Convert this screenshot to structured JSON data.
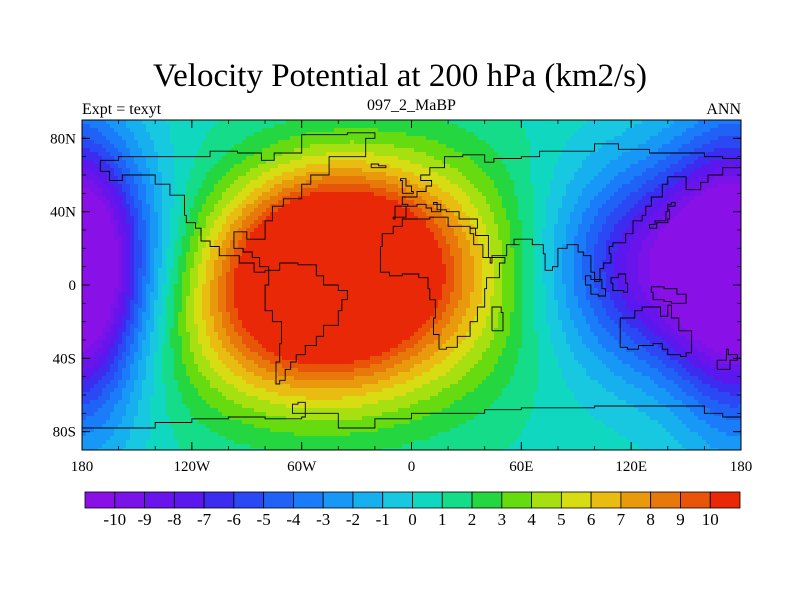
{
  "title": "Velocity Potential at 200 hPa (km2/s)",
  "subtitle_left": "Expt = texyt",
  "subtitle_center": "097_2_MaBP",
  "subtitle_right": "ANN",
  "chart_data": {
    "type": "heatmap",
    "title": "Velocity Potential at 200 hPa (km2/s)",
    "x_ticks": [
      "180",
      "120W",
      "60W",
      "0",
      "60E",
      "120E",
      "180"
    ],
    "x_tick_values": [
      -180,
      -120,
      -60,
      0,
      60,
      120,
      180
    ],
    "y_ticks": [
      "80N",
      "40N",
      "0",
      "40S",
      "80S"
    ],
    "y_tick_values": [
      80,
      40,
      0,
      -40,
      -80
    ],
    "xlim": [
      -180,
      180
    ],
    "ylim": [
      -90,
      90
    ],
    "colorbar_labels": [
      "-10",
      "-9",
      "-8",
      "-7",
      "-6",
      "-5",
      "-4",
      "-3",
      "-2",
      "-1",
      "0",
      "1",
      "2",
      "3",
      "4",
      "5",
      "6",
      "7",
      "8",
      "9",
      "10"
    ],
    "colorbar_levels": [
      -10,
      -9,
      -8,
      -7,
      -6,
      -5,
      -4,
      -3,
      -2,
      -1,
      0,
      1,
      2,
      3,
      4,
      5,
      6,
      7,
      8,
      9,
      10
    ],
    "colors": [
      "#8a10e8",
      "#7a12ea",
      "#6a14ec",
      "#5a18ee",
      "#3c2cf0",
      "#2a48f4",
      "#2062f6",
      "#1a7cf8",
      "#1898f6",
      "#16b0ee",
      "#18c8e0",
      "#10d8c0",
      "#14dc88",
      "#24d640",
      "#66dc10",
      "#a6e010",
      "#d8dc12",
      "#e8bc10",
      "#e89a0c",
      "#e8780a",
      "#e85508",
      "#e82806"
    ],
    "centers": [
      {
        "lon": 145,
        "lat": 10,
        "value": -10.5,
        "sx": 50,
        "sy": 40
      },
      {
        "lon": 175,
        "lat": 10,
        "value": -4,
        "sx": 25,
        "sy": 60
      },
      {
        "lon": -178,
        "lat": 0,
        "value": -5,
        "sx": 22,
        "sy": 60
      },
      {
        "lon": -60,
        "lat": -16,
        "value": 9,
        "sx": 52,
        "sy": 38
      },
      {
        "lon": -45,
        "lat": 22,
        "value": 8,
        "sx": 40,
        "sy": 32
      },
      {
        "lon": 5,
        "lat": 10,
        "value": 5.5,
        "sx": 55,
        "sy": 45
      }
    ],
    "local_centers": [
      {
        "lon": -7,
        "lat": 0,
        "value": -3.2,
        "sx": 7,
        "sy": 6
      }
    ]
  }
}
